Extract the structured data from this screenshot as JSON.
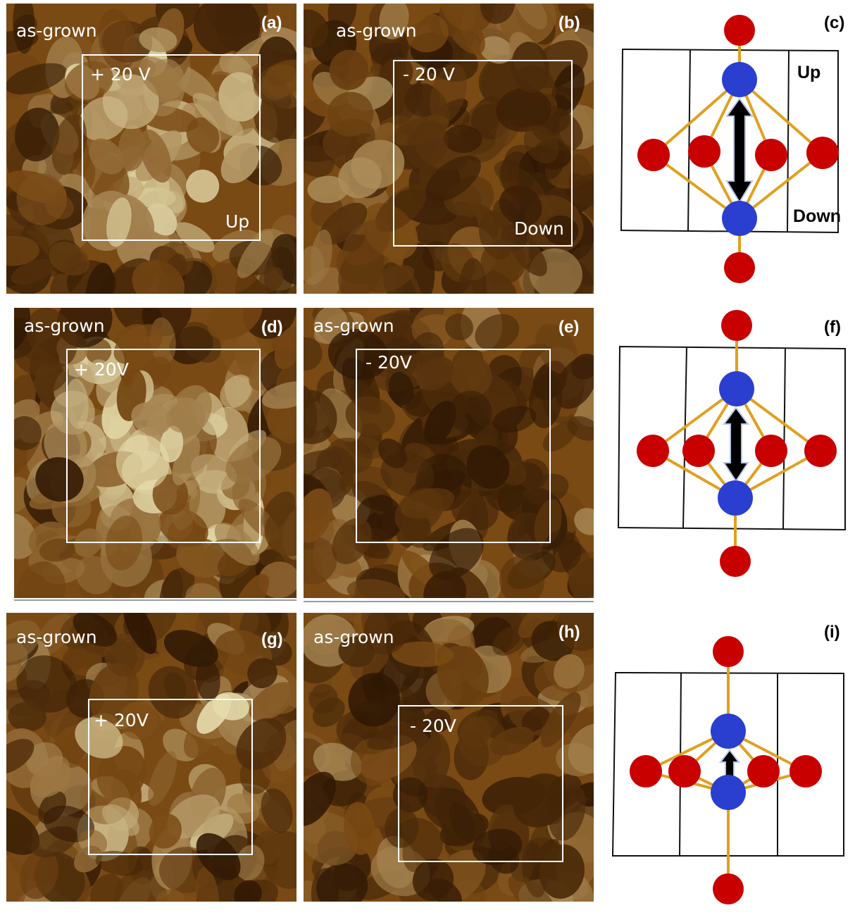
{
  "colors": {
    "dark": "#2b1503",
    "mid": "#7a4a14",
    "light": "#e8dfb0",
    "oxygen": "#c80000",
    "cation": "#2a3fd0",
    "bond": "#e0a020"
  },
  "panels": [
    {
      "tag": "(a)",
      "as_grown": "as-grown",
      "voltage": "+ 20 V",
      "direction": "Up",
      "tone": "bright"
    },
    {
      "tag": "(b)",
      "as_grown": "as-grown",
      "voltage": "- 20 V",
      "direction": "Down",
      "tone": "dark"
    },
    {
      "tag": "(d)",
      "as_grown": "as-grown",
      "voltage": "+ 20V",
      "tone": "bright"
    },
    {
      "tag": "(e)",
      "as_grown": "as-grown",
      "voltage": "- 20V",
      "tone": "dark"
    },
    {
      "tag": "(g)",
      "as_grown": "as-grown",
      "voltage": "+ 20V",
      "tone": "bright"
    },
    {
      "tag": "(h)",
      "as_grown": "as-grown",
      "voltage": "- 20V",
      "tone": "dark"
    }
  ],
  "structures": [
    {
      "tag": "(c)",
      "up": "Up",
      "down": "Down"
    },
    {
      "tag": "(f)"
    },
    {
      "tag": "(i)"
    }
  ]
}
